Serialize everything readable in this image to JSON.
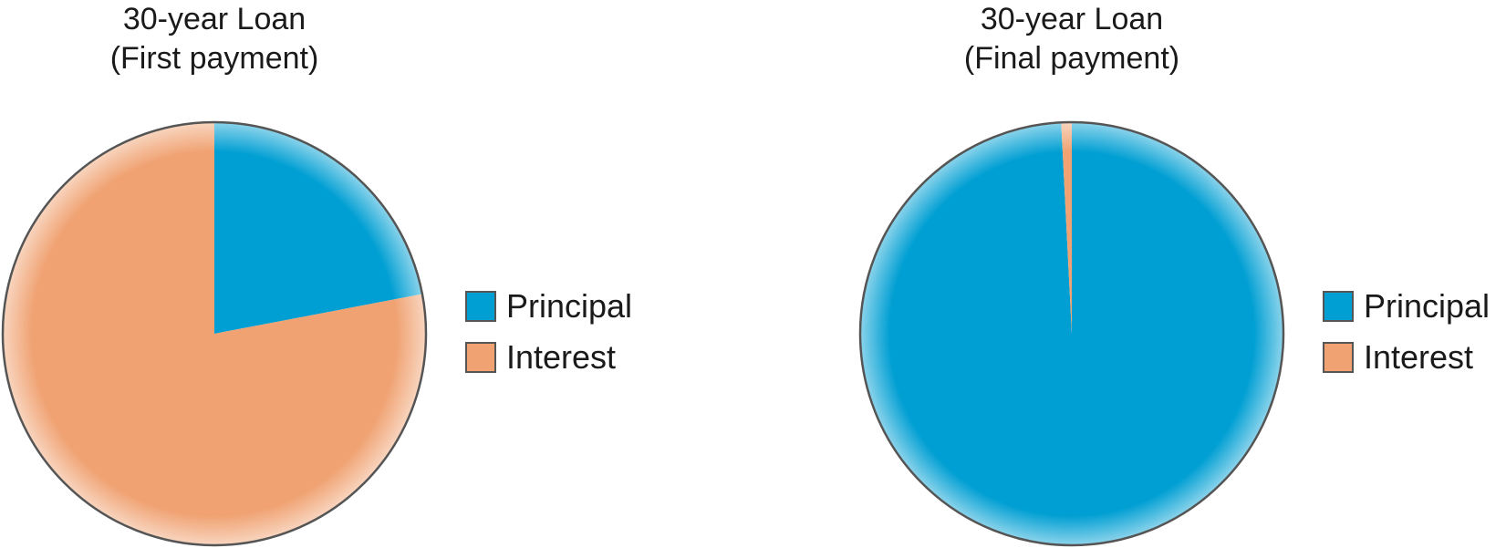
{
  "chart_data": [
    {
      "type": "pie",
      "title": "30-year Loan",
      "subtitle": "(First payment)",
      "legend": "right",
      "slices": [
        {
          "label": "Principal",
          "value": 22,
          "color": "#009fd3"
        },
        {
          "label": "Interest",
          "value": 78,
          "color": "#f0a272"
        }
      ]
    },
    {
      "type": "pie",
      "title": "30-year Loan",
      "subtitle": "(Final payment)",
      "legend": "right",
      "slices": [
        {
          "label": "Principal",
          "value": 99.2,
          "color": "#009fd3"
        },
        {
          "label": "Interest",
          "value": 0.8,
          "color": "#f0a272"
        }
      ]
    }
  ]
}
